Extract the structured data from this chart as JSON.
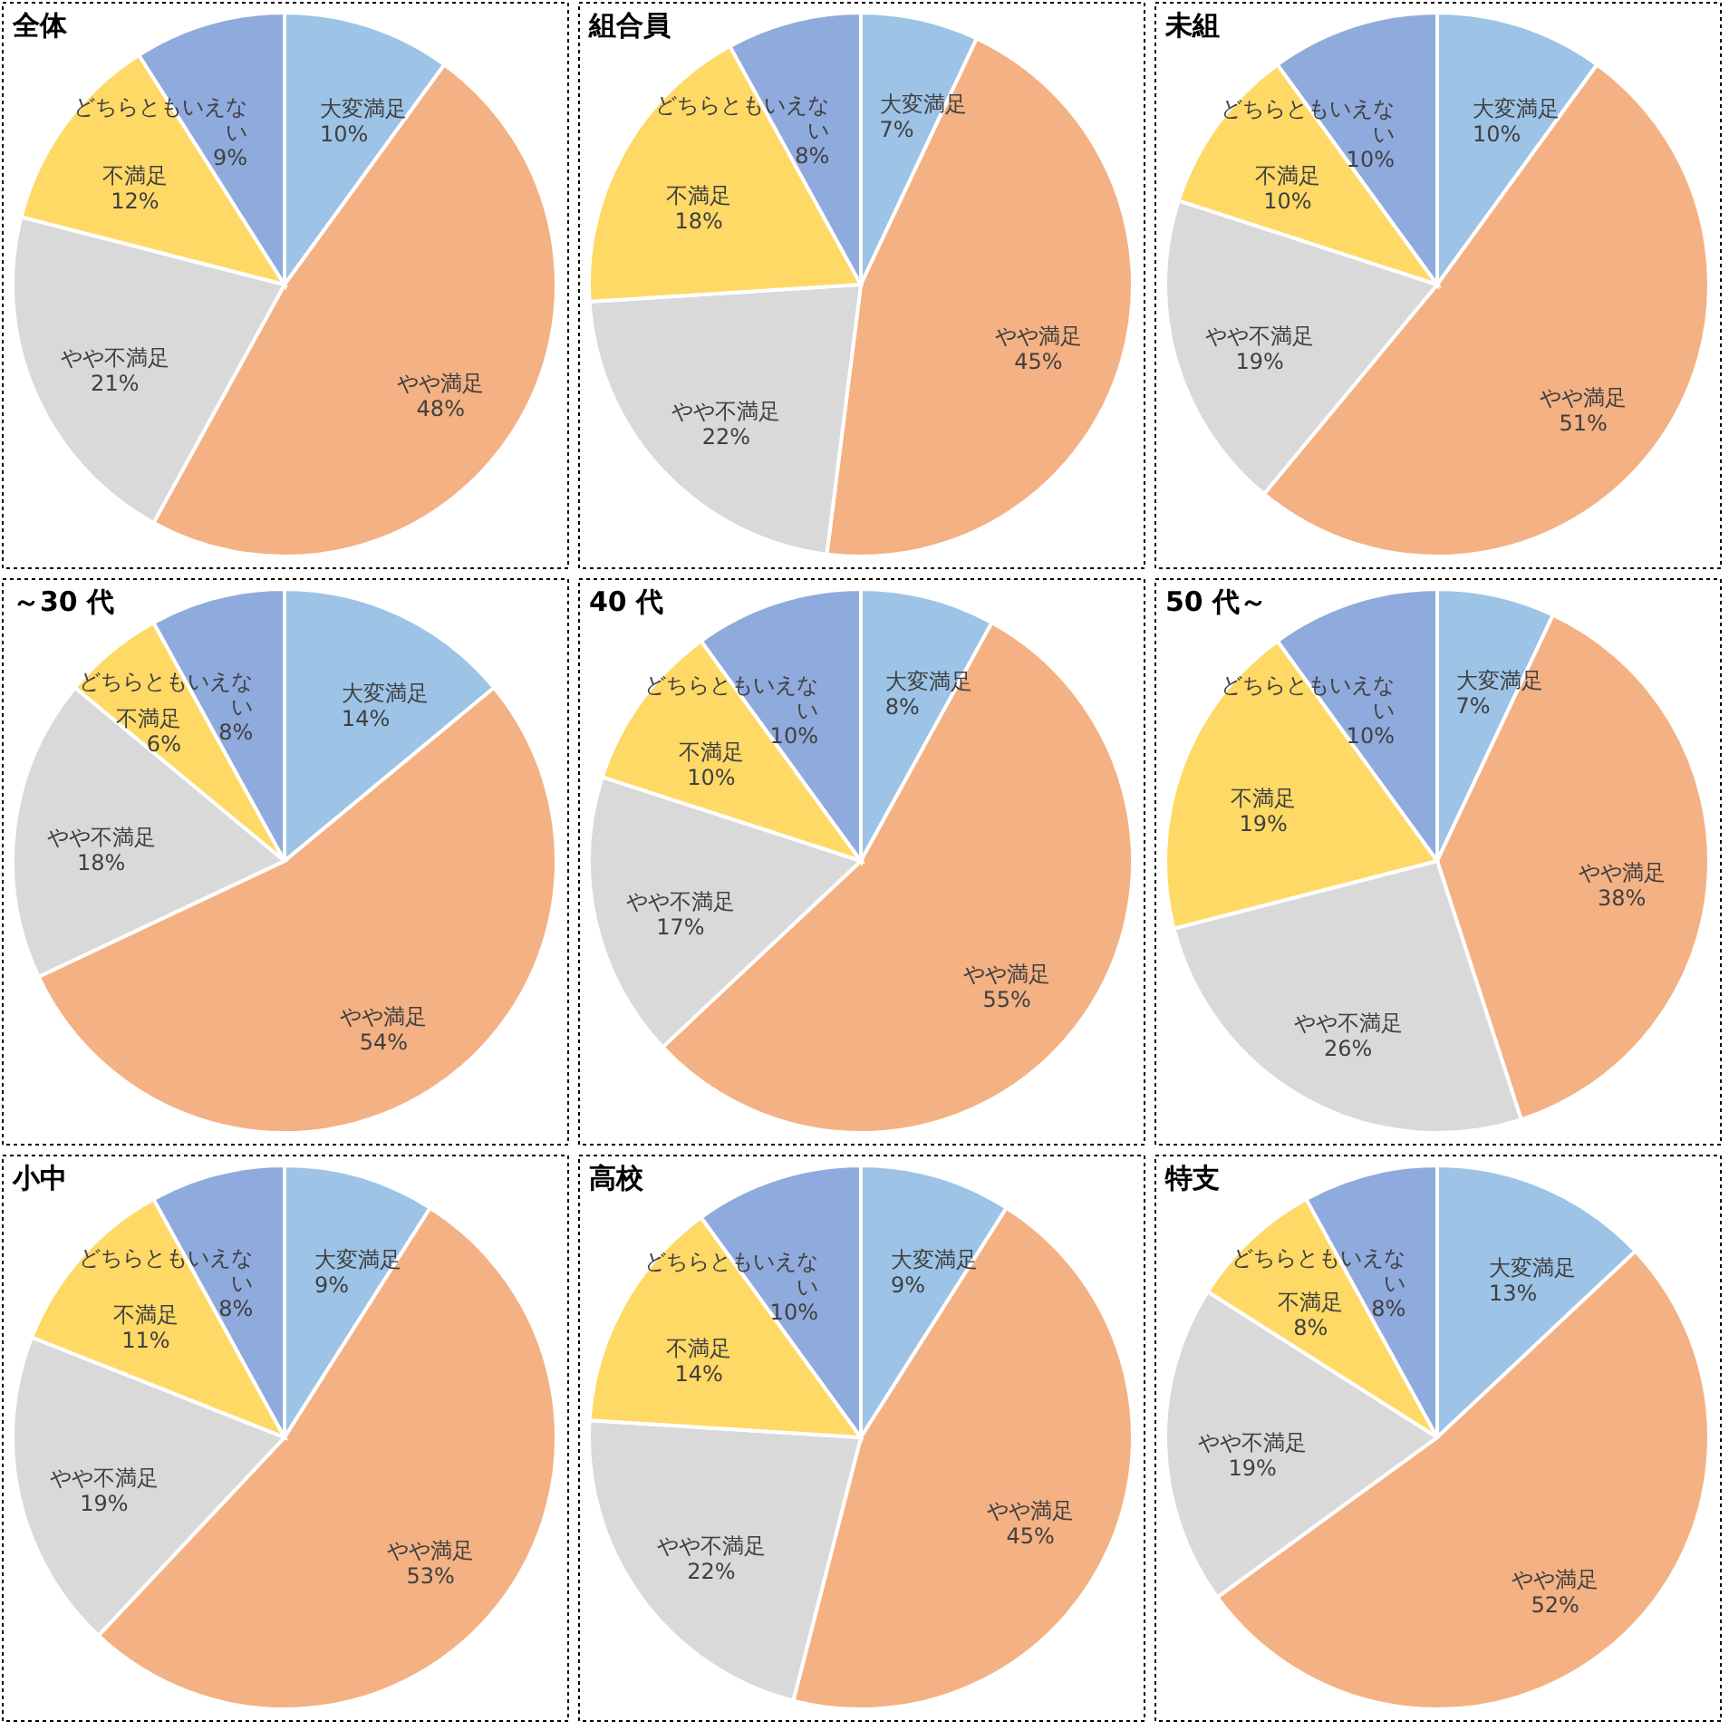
{
  "chart_data": [
    {
      "type": "pie",
      "title": "全体",
      "categories": [
        "大変満足",
        "やや満足",
        "やや不満足",
        "不満足",
        "どちらともいえない"
      ],
      "values": [
        10,
        48,
        21,
        12,
        9
      ],
      "value_labels": [
        "10%",
        "48%",
        "21%",
        "12%",
        "9%"
      ],
      "colors": [
        "#9dc3e6",
        "#f4b183",
        "#d9d9d9",
        "#ffd966",
        "#8faadc"
      ]
    },
    {
      "type": "pie",
      "title": "組合員",
      "categories": [
        "大変満足",
        "やや満足",
        "やや不満足",
        "不満足",
        "どちらともいえない"
      ],
      "values": [
        7,
        45,
        22,
        18,
        8
      ],
      "value_labels": [
        "7%",
        "45%",
        "22%",
        "18%",
        "8%"
      ],
      "colors": [
        "#9dc3e6",
        "#f4b183",
        "#d9d9d9",
        "#ffd966",
        "#8faadc"
      ]
    },
    {
      "type": "pie",
      "title": "未組",
      "categories": [
        "大変満足",
        "やや満足",
        "やや不満足",
        "不満足",
        "どちらともいえない"
      ],
      "values": [
        10,
        51,
        19,
        10,
        10
      ],
      "value_labels": [
        "10%",
        "51%",
        "19%",
        "10%",
        "10%"
      ],
      "colors": [
        "#9dc3e6",
        "#f4b183",
        "#d9d9d9",
        "#ffd966",
        "#8faadc"
      ]
    },
    {
      "type": "pie",
      "title": "～30 代",
      "categories": [
        "大変満足",
        "やや満足",
        "やや不満足",
        "不満足",
        "どちらともいえない"
      ],
      "values": [
        14,
        54,
        18,
        6,
        8
      ],
      "value_labels": [
        "14%",
        "54%",
        "18%",
        "6%",
        "8%"
      ],
      "colors": [
        "#9dc3e6",
        "#f4b183",
        "#d9d9d9",
        "#ffd966",
        "#8faadc"
      ]
    },
    {
      "type": "pie",
      "title": "40 代",
      "categories": [
        "大変満足",
        "やや満足",
        "やや不満足",
        "不満足",
        "どちらともいえない"
      ],
      "values": [
        8,
        55,
        17,
        10,
        10
      ],
      "value_labels": [
        "8%",
        "55%",
        "17%",
        "10%",
        "10%"
      ],
      "colors": [
        "#9dc3e6",
        "#f4b183",
        "#d9d9d9",
        "#ffd966",
        "#8faadc"
      ]
    },
    {
      "type": "pie",
      "title": "50 代～",
      "categories": [
        "大変満足",
        "やや満足",
        "やや不満足",
        "不満足",
        "どちらともいえない"
      ],
      "values": [
        7,
        38,
        26,
        19,
        10
      ],
      "value_labels": [
        "7%",
        "38%",
        "26%",
        "19%",
        "10%"
      ],
      "colors": [
        "#9dc3e6",
        "#f4b183",
        "#d9d9d9",
        "#ffd966",
        "#8faadc"
      ]
    },
    {
      "type": "pie",
      "title": "小中",
      "categories": [
        "大変満足",
        "やや満足",
        "やや不満足",
        "不満足",
        "どちらともいえない"
      ],
      "values": [
        9,
        53,
        19,
        11,
        8
      ],
      "value_labels": [
        "9%",
        "53%",
        "19%",
        "11%",
        "8%"
      ],
      "colors": [
        "#9dc3e6",
        "#f4b183",
        "#d9d9d9",
        "#ffd966",
        "#8faadc"
      ]
    },
    {
      "type": "pie",
      "title": "高校",
      "categories": [
        "大変満足",
        "やや満足",
        "やや不満足",
        "不満足",
        "どちらともいえない"
      ],
      "values": [
        9,
        45,
        22,
        14,
        10
      ],
      "value_labels": [
        "9%",
        "45%",
        "22%",
        "14%",
        "10%"
      ],
      "colors": [
        "#9dc3e6",
        "#f4b183",
        "#d9d9d9",
        "#ffd966",
        "#8faadc"
      ]
    },
    {
      "type": "pie",
      "title": "特支",
      "categories": [
        "大変満足",
        "やや満足",
        "やや不満足",
        "不満足",
        "どちらともいえない"
      ],
      "values": [
        13,
        52,
        19,
        8,
        8
      ],
      "value_labels": [
        "13%",
        "52%",
        "19%",
        "8%",
        "8%"
      ],
      "colors": [
        "#9dc3e6",
        "#f4b183",
        "#d9d9d9",
        "#ffd966",
        "#8faadc"
      ]
    }
  ]
}
